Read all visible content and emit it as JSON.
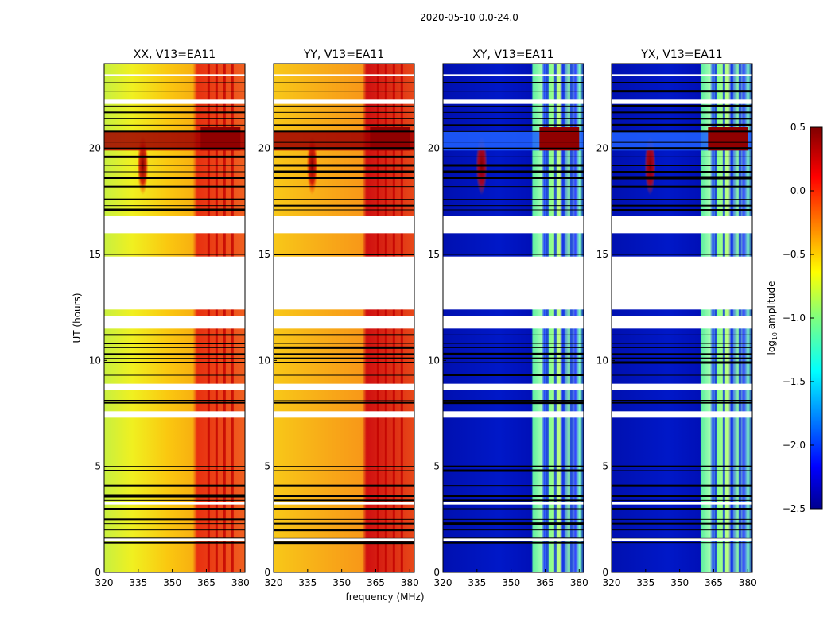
{
  "figure": {
    "suptitle": "2020-05-10 0.0-24.0"
  },
  "chart_data": {
    "type": "heatmap",
    "panels": [
      {
        "title": "XX, V13=EA11",
        "product": "XX",
        "scheme": "parallel"
      },
      {
        "title": "YY, V13=EA11",
        "product": "YY",
        "scheme": "parallel"
      },
      {
        "title": "XY, V13=EA11",
        "product": "XY",
        "scheme": "cross"
      },
      {
        "title": "YX, V13=EA11",
        "product": "YX",
        "scheme": "cross"
      }
    ],
    "xlabel": "frequency (MHz)",
    "ylabel": "UT (hours)",
    "xlim": [
      320,
      382
    ],
    "ylim": [
      0,
      24
    ],
    "xticks": [
      320,
      335,
      350,
      365,
      380
    ],
    "yticks": [
      0,
      5,
      10,
      15,
      20
    ],
    "colorbar": {
      "label": "log10 amplitude",
      "label_main": "log",
      "label_sub": "10",
      "label_rest": " amplitude",
      "vmin": -2.5,
      "vmax": 0.5,
      "ticks": [
        {
          "value": 0.5,
          "label": "0.5"
        },
        {
          "value": 0.0,
          "label": "0.0"
        },
        {
          "value": -0.5,
          "label": "−0.5"
        },
        {
          "value": -1.0,
          "label": "−1.0"
        },
        {
          "value": -1.5,
          "label": "−1.5"
        },
        {
          "value": -2.0,
          "label": "−2.0"
        },
        {
          "value": -2.5,
          "label": "−2.5"
        }
      ]
    },
    "flag_bands_hours": [
      [
        16.0,
        16.8
      ],
      [
        12.4,
        14.9
      ],
      [
        11.5,
        12.1
      ],
      [
        8.6,
        8.9
      ],
      [
        7.3,
        7.6
      ]
    ],
    "rfi_band_mhz": [
      362.5,
      380.0
    ],
    "flare_event": {
      "freq_mhz": 337,
      "ut_start": 17.8,
      "ut_end": 20.6
    }
  }
}
